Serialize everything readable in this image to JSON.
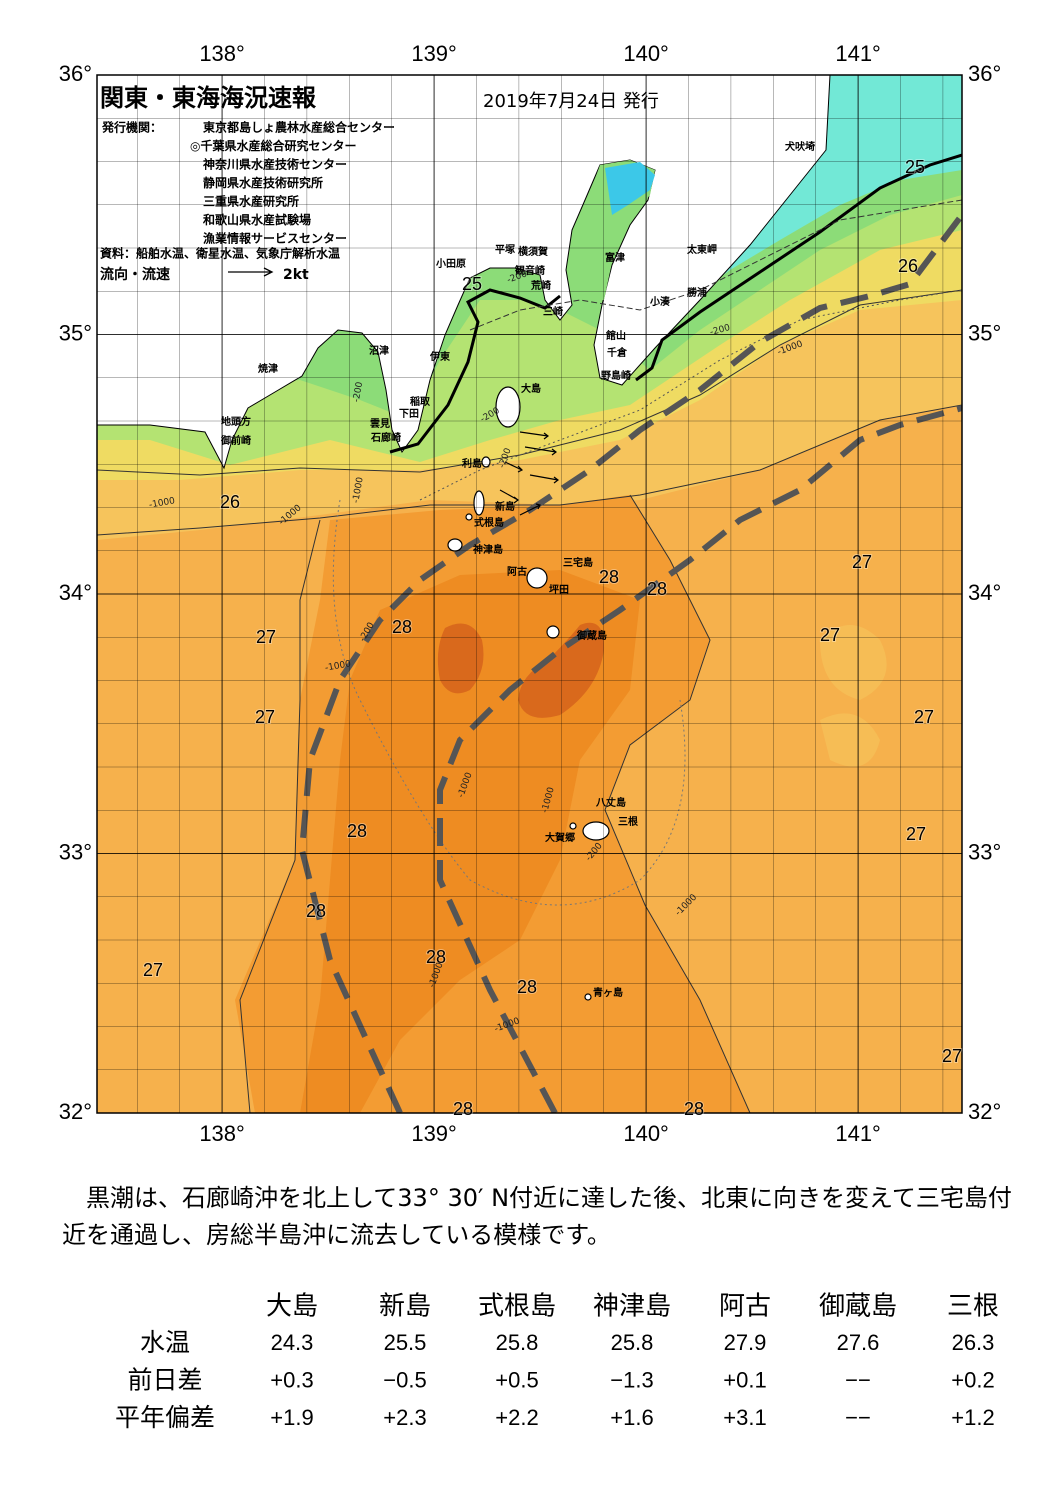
{
  "header": {
    "title": "関東・東海海況速報",
    "date": "2019年7月24日 発行",
    "publisher_label": "発行機関：",
    "publishers": [
      "東京都島しょ農林水産総合センター",
      "◎千葉県水産総合研究センター",
      "神奈川県水産技術センター",
      "静岡県水産技術研究所",
      "三重県水産研究所",
      "和歌山県水産試験場",
      "漁業情報サービスセンター"
    ],
    "source": "資料：船舶水温、衛星水温、気象庁解析水温",
    "legend_label": "流向・流速",
    "legend_scale": "2kt"
  },
  "map": {
    "lonlim": [
      137.41,
      141.49
    ],
    "latlim": [
      32,
      36
    ],
    "lonticks": [
      {
        "value": 138,
        "label": "138°"
      },
      {
        "value": 139,
        "label": "139°"
      },
      {
        "value": 140,
        "label": "140°"
      },
      {
        "value": 141,
        "label": "141°"
      }
    ],
    "latticks": [
      {
        "value": 36,
        "label": "36°"
      },
      {
        "value": 35,
        "label": "35°"
      },
      {
        "value": 34,
        "label": "34°"
      },
      {
        "value": 33,
        "label": "33°"
      },
      {
        "value": 32,
        "label": "32°"
      }
    ],
    "places": [
      "犬吠埼",
      "太東岬",
      "勝浦",
      "小湊",
      "館山",
      "千倉",
      "野島崎",
      "富津",
      "横須賀",
      "観音崎",
      "平塚",
      "荒崎",
      "三崎",
      "小田原",
      "沼津",
      "伊東",
      "焼津",
      "稲取",
      "下田",
      "雲見",
      "石廊崎",
      "地頭方",
      "御前崎",
      "大島",
      "利島",
      "新島",
      "式根島",
      "神津島",
      "三宅島",
      "阿古",
      "坪田",
      "御蔵島",
      "八丈島",
      "三根",
      "大賀郷",
      "青ヶ島"
    ],
    "isotherm_labels": [
      25,
      26,
      25,
      26,
      27,
      28,
      28,
      28,
      27,
      27,
      27,
      27,
      28,
      27,
      28,
      27,
      28,
      28,
      27,
      28,
      28
    ],
    "depth_labels": [
      "-200",
      "-200",
      "-1000",
      "-200",
      "-200",
      "-200",
      "-1000",
      "-1000",
      "-1000",
      "-200",
      "-1000",
      "-1000",
      "-1000",
      "-200",
      "-1000",
      "-1000",
      "-1000"
    ]
  },
  "note": "黒潮は、石廊崎沖を北上して33° 30′ N付近に達した後、北東に向きを変えて三宅島付近を通過し、房総半島沖に流去している模様です。",
  "table": {
    "columns": [
      "大島",
      "新島",
      "式根島",
      "神津島",
      "阿古",
      "御蔵島",
      "三根"
    ],
    "rows": [
      {
        "label": "水温",
        "values": [
          "24.3",
          "25.5",
          "25.8",
          "25.8",
          "27.9",
          "27.6",
          "26.3"
        ]
      },
      {
        "label": "前日差",
        "values": [
          "+0.3",
          "−0.5",
          "+0.5",
          "−1.3",
          "+0.1",
          "−−",
          "+0.2"
        ]
      },
      {
        "label": "平年偏差",
        "values": [
          "+1.9",
          "+2.3",
          "+2.2",
          "+1.6",
          "+3.1",
          "−−",
          "+1.2"
        ]
      }
    ]
  }
}
